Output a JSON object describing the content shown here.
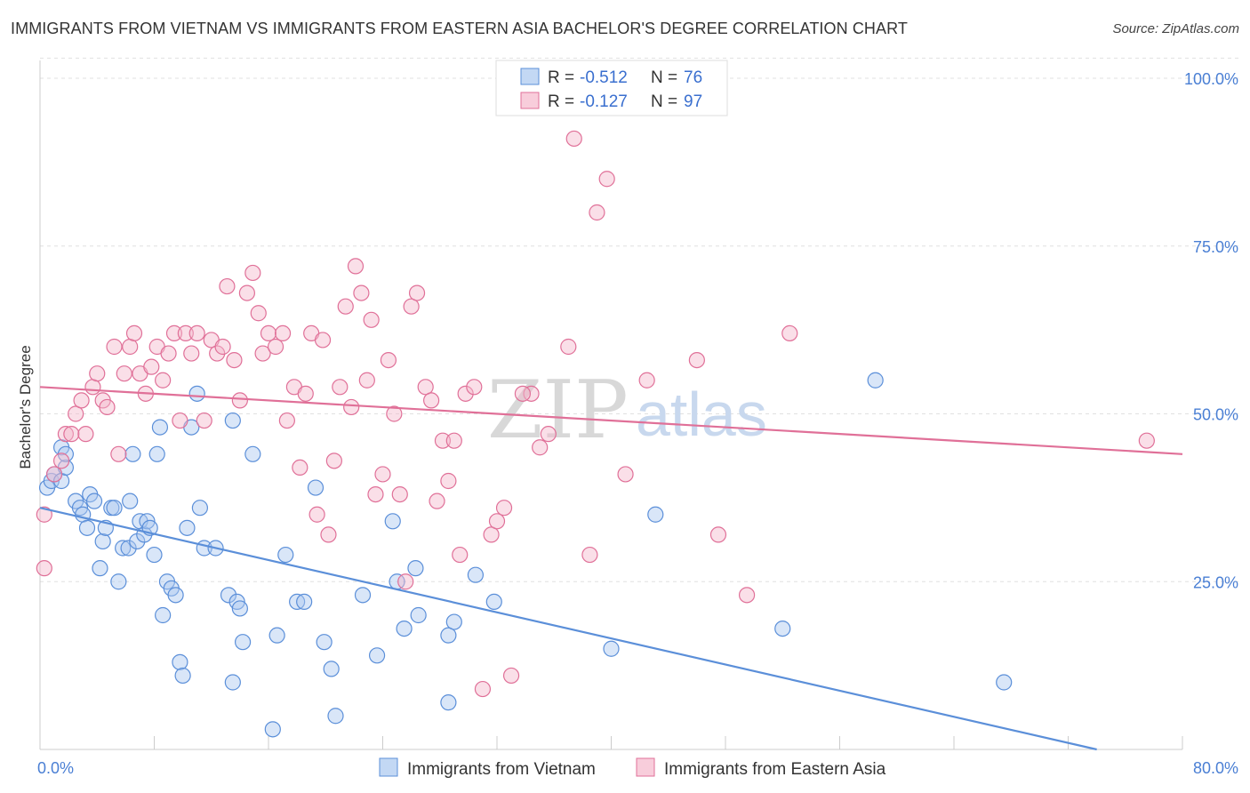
{
  "header": {
    "title": "IMMIGRANTS FROM VIETNAM VS IMMIGRANTS FROM EASTERN ASIA BACHELOR'S DEGREE CORRELATION CHART",
    "source": "Source: ZipAtlas.com"
  },
  "watermark": {
    "zip": "ZIP",
    "atlas": "atlas"
  },
  "chart_data": {
    "type": "scatter",
    "ylabel": "Bachelor's Degree",
    "xlim": [
      0,
      80
    ],
    "ylim": [
      0,
      105
    ],
    "x_ticks": [
      {
        "value": 0,
        "label": "0.0%"
      },
      {
        "value": 80,
        "label": "80.0%"
      }
    ],
    "y_ticks": [
      {
        "value": 25,
        "label": "25.0%"
      },
      {
        "value": 50,
        "label": "50.0%"
      },
      {
        "value": 75,
        "label": "75.0%"
      },
      {
        "value": 100,
        "label": "100.0%"
      }
    ],
    "grid": true,
    "legend": {
      "position": "top-center",
      "entries": [
        {
          "r_label": "R =",
          "r_value": "-0.512",
          "n_label": "N =",
          "n_value": "76"
        },
        {
          "r_label": "R =",
          "r_value": "-0.127",
          "n_label": "N =",
          "n_value": "97"
        }
      ]
    },
    "series": [
      {
        "name": "Immigrants from Vietnam",
        "color": "#5b8fd9",
        "fill": "#aac8f0",
        "trend": [
          [
            0,
            36
          ],
          [
            74,
            0
          ]
        ],
        "points": [
          [
            0.5,
            39
          ],
          [
            0.8,
            40
          ],
          [
            1.0,
            41
          ],
          [
            1.5,
            40
          ],
          [
            1.5,
            45
          ],
          [
            1.8,
            42
          ],
          [
            1.8,
            44
          ],
          [
            2.5,
            37
          ],
          [
            2.8,
            36
          ],
          [
            3.0,
            35
          ],
          [
            3.3,
            33
          ],
          [
            3.5,
            38
          ],
          [
            3.8,
            37
          ],
          [
            4.2,
            27
          ],
          [
            4.4,
            31
          ],
          [
            4.6,
            33
          ],
          [
            5.0,
            36
          ],
          [
            5.2,
            36
          ],
          [
            5.5,
            25
          ],
          [
            5.8,
            30
          ],
          [
            6.2,
            30
          ],
          [
            6.3,
            37
          ],
          [
            6.5,
            44
          ],
          [
            6.8,
            31
          ],
          [
            7.0,
            34
          ],
          [
            7.3,
            32
          ],
          [
            7.5,
            34
          ],
          [
            7.7,
            33
          ],
          [
            8.0,
            29
          ],
          [
            8.2,
            44
          ],
          [
            8.4,
            48
          ],
          [
            8.6,
            20
          ],
          [
            8.9,
            25
          ],
          [
            9.2,
            24
          ],
          [
            9.5,
            23
          ],
          [
            9.8,
            13
          ],
          [
            10.0,
            11
          ],
          [
            10.3,
            33
          ],
          [
            10.6,
            48
          ],
          [
            11.0,
            53
          ],
          [
            11.2,
            36
          ],
          [
            11.5,
            30
          ],
          [
            12.3,
            30
          ],
          [
            13.2,
            23
          ],
          [
            13.5,
            49
          ],
          [
            13.8,
            22
          ],
          [
            14.0,
            21
          ],
          [
            14.2,
            16
          ],
          [
            14.9,
            44
          ],
          [
            16.3,
            3
          ],
          [
            16.6,
            17
          ],
          [
            17.2,
            29
          ],
          [
            18.0,
            22
          ],
          [
            18.5,
            22
          ],
          [
            19.3,
            39
          ],
          [
            19.9,
            16
          ],
          [
            20.4,
            12
          ],
          [
            20.7,
            5
          ],
          [
            22.6,
            23
          ],
          [
            23.6,
            14
          ],
          [
            24.7,
            34
          ],
          [
            25.0,
            25
          ],
          [
            25.5,
            18
          ],
          [
            26.3,
            27
          ],
          [
            26.5,
            20
          ],
          [
            28.6,
            17
          ],
          [
            28.6,
            7
          ],
          [
            29.0,
            19
          ],
          [
            30.5,
            26
          ],
          [
            31.8,
            22
          ],
          [
            43.1,
            35
          ],
          [
            52.0,
            18
          ],
          [
            67.5,
            10
          ],
          [
            58.5,
            55
          ],
          [
            40.0,
            15
          ],
          [
            13.5,
            10
          ]
        ]
      },
      {
        "name": "Immigrants from Eastern Asia",
        "color": "#e07098",
        "fill": "#f5b8cc",
        "trend": [
          [
            0,
            54
          ],
          [
            80,
            44
          ]
        ],
        "points": [
          [
            0.3,
            35
          ],
          [
            0.3,
            27
          ],
          [
            1.0,
            41
          ],
          [
            1.5,
            43
          ],
          [
            1.8,
            47
          ],
          [
            2.2,
            47
          ],
          [
            2.5,
            50
          ],
          [
            2.9,
            52
          ],
          [
            3.2,
            47
          ],
          [
            3.7,
            54
          ],
          [
            4.0,
            56
          ],
          [
            4.4,
            52
          ],
          [
            4.7,
            51
          ],
          [
            5.2,
            60
          ],
          [
            5.5,
            44
          ],
          [
            5.9,
            56
          ],
          [
            6.3,
            60
          ],
          [
            6.6,
            62
          ],
          [
            7.0,
            56
          ],
          [
            7.4,
            53
          ],
          [
            7.8,
            57
          ],
          [
            8.2,
            60
          ],
          [
            8.6,
            55
          ],
          [
            9.0,
            59
          ],
          [
            9.4,
            62
          ],
          [
            9.8,
            49
          ],
          [
            10.2,
            62
          ],
          [
            10.6,
            59
          ],
          [
            11.0,
            62
          ],
          [
            11.5,
            49
          ],
          [
            12.0,
            61
          ],
          [
            12.4,
            59
          ],
          [
            12.8,
            60
          ],
          [
            13.1,
            69
          ],
          [
            13.6,
            58
          ],
          [
            14.0,
            52
          ],
          [
            14.5,
            68
          ],
          [
            14.9,
            71
          ],
          [
            15.3,
            65
          ],
          [
            15.6,
            59
          ],
          [
            16.0,
            62
          ],
          [
            16.5,
            60
          ],
          [
            17.0,
            62
          ],
          [
            17.3,
            49
          ],
          [
            17.8,
            54
          ],
          [
            18.2,
            42
          ],
          [
            18.6,
            53
          ],
          [
            19.0,
            62
          ],
          [
            19.4,
            35
          ],
          [
            19.8,
            61
          ],
          [
            20.2,
            32
          ],
          [
            20.6,
            43
          ],
          [
            21.0,
            54
          ],
          [
            21.4,
            66
          ],
          [
            21.8,
            51
          ],
          [
            22.1,
            72
          ],
          [
            22.5,
            68
          ],
          [
            22.9,
            55
          ],
          [
            23.2,
            64
          ],
          [
            23.5,
            38
          ],
          [
            24.0,
            41
          ],
          [
            24.4,
            58
          ],
          [
            24.8,
            50
          ],
          [
            25.2,
            38
          ],
          [
            25.6,
            25
          ],
          [
            26.0,
            66
          ],
          [
            26.4,
            68
          ],
          [
            27.0,
            54
          ],
          [
            27.4,
            52
          ],
          [
            27.8,
            37
          ],
          [
            28.2,
            46
          ],
          [
            28.6,
            40
          ],
          [
            29.0,
            46
          ],
          [
            29.4,
            29
          ],
          [
            29.8,
            53
          ],
          [
            30.4,
            54
          ],
          [
            31.0,
            9
          ],
          [
            31.6,
            32
          ],
          [
            32.0,
            34
          ],
          [
            32.5,
            36
          ],
          [
            33.0,
            11
          ],
          [
            34.4,
            53
          ],
          [
            35.6,
            47
          ],
          [
            37.0,
            60
          ],
          [
            37.4,
            91
          ],
          [
            38.5,
            29
          ],
          [
            39.0,
            80
          ],
          [
            39.7,
            85
          ],
          [
            41.0,
            41
          ],
          [
            42.5,
            55
          ],
          [
            46.0,
            58
          ],
          [
            47.5,
            32
          ],
          [
            49.5,
            23
          ],
          [
            52.5,
            62
          ],
          [
            77.5,
            46
          ],
          [
            33.8,
            53
          ],
          [
            35.0,
            45
          ]
        ]
      }
    ]
  },
  "bottom_legend": [
    {
      "label": "Immigrants from Vietnam"
    },
    {
      "label": "Immigrants from Eastern Asia"
    }
  ]
}
